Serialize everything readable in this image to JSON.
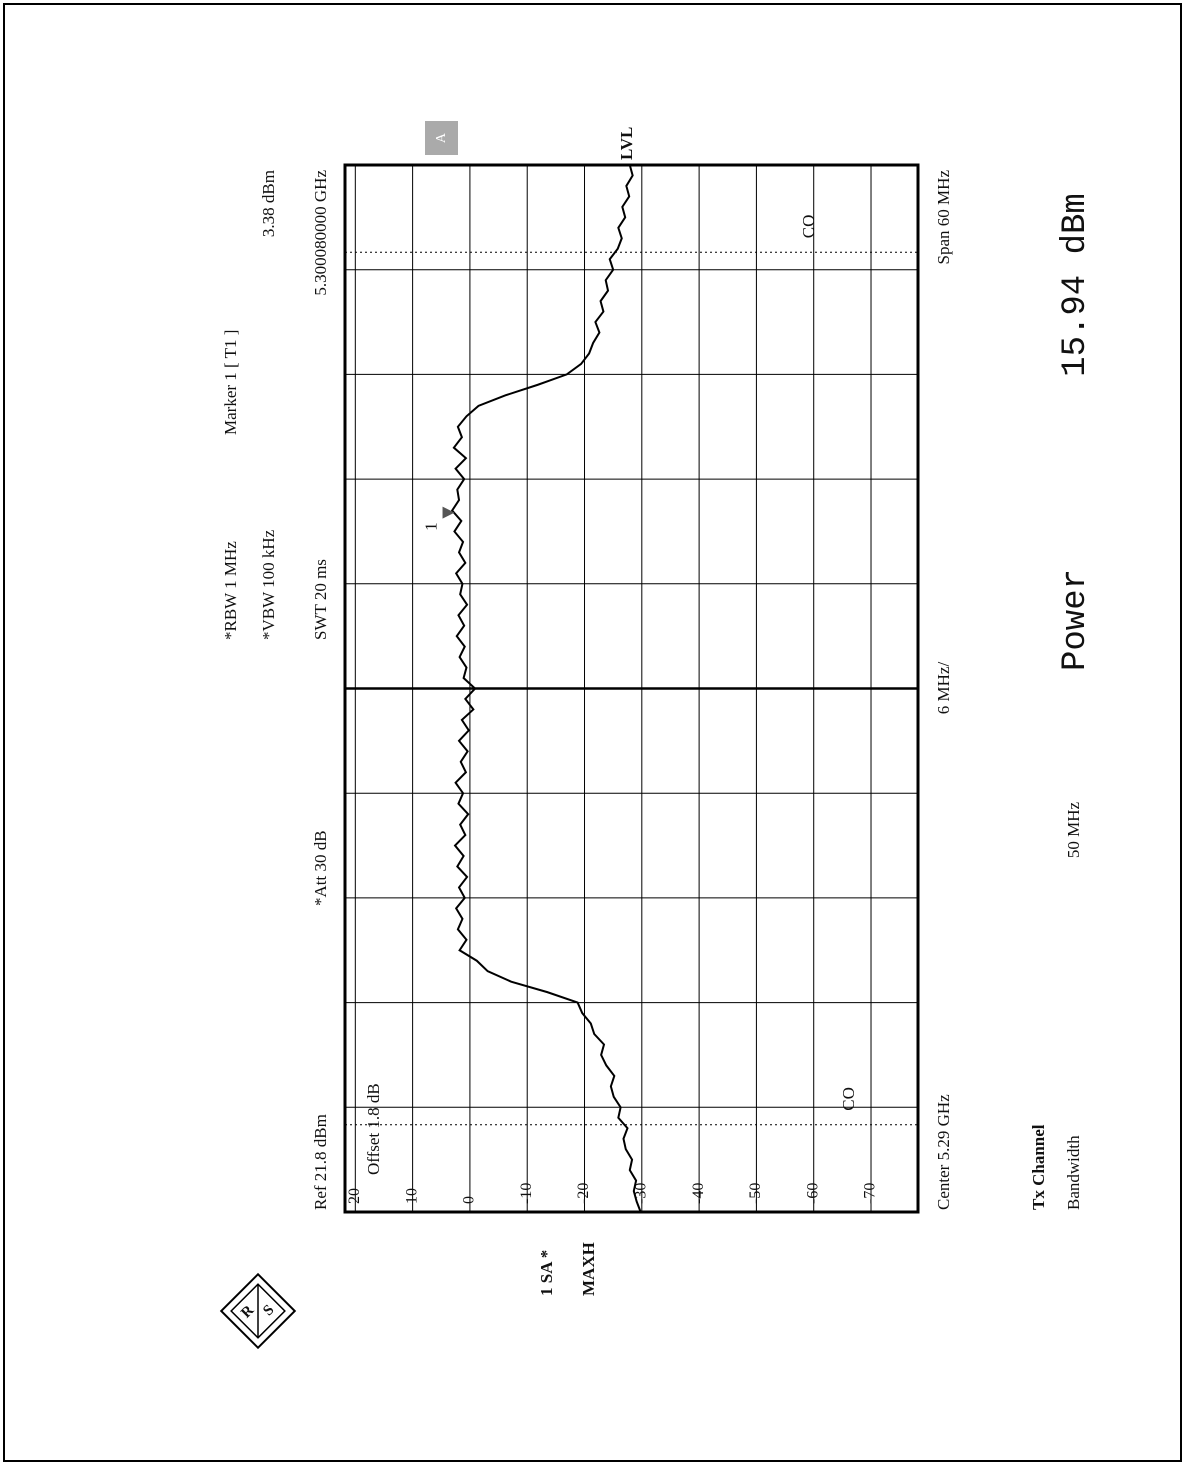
{
  "chart_data": {
    "type": "line",
    "ref_label": "Ref  21.8 dBm",
    "offset_label": "Offset  1.8 dB",
    "att_label": "*Att  30 dB",
    "rbw_label": "*RBW 1 MHz",
    "vbw_label": "*VBW 100 kHz",
    "swt_label": "SWT 20 ms",
    "marker": {
      "title": "Marker 1 [ T1 ]",
      "name": "1",
      "x": 5.30008,
      "value": 3.38,
      "value_label": "3.38 dBm",
      "x_label": "5.300080000 GHz"
    },
    "trace_label": "1 SA *",
    "detector_label": "MAXH",
    "lvl_label": "LVL",
    "status_box": "A",
    "logo": [
      "R",
      "S"
    ],
    "center_label": "Center 5.29 GHz",
    "div_label": "6 MHz/",
    "span_label": "Span 60 MHz",
    "channel_lines": [
      {
        "x": 5.265,
        "label": "CO"
      },
      {
        "x": 5.315,
        "label": "CO"
      }
    ],
    "results": {
      "title": "Tx Channel",
      "bandwidth_label": "Bandwidth",
      "bandwidth": "50 MHz",
      "power_label": "Power",
      "power": "15.94 dBm"
    },
    "xlim": [
      5.26,
      5.32
    ],
    "xticks": [
      5.26,
      5.266,
      5.272,
      5.278,
      5.284,
      5.29,
      5.296,
      5.302,
      5.308,
      5.314,
      5.32
    ],
    "ylim": [
      -78.2,
      21.8
    ],
    "yticks": [
      20,
      10,
      0,
      -10,
      -20,
      -30,
      -40,
      -50,
      -60,
      -70
    ],
    "grid": true,
    "x": [
      5.26,
      5.2606,
      5.2612,
      5.2618,
      5.2624,
      5.263,
      5.2636,
      5.2642,
      5.2648,
      5.2654,
      5.266,
      5.2666,
      5.2672,
      5.2678,
      5.2684,
      5.269,
      5.2696,
      5.2702,
      5.2708,
      5.2714,
      5.272,
      5.2726,
      5.2732,
      5.2738,
      5.2744,
      5.275,
      5.2756,
      5.2762,
      5.2768,
      5.2774,
      5.278,
      5.2786,
      5.2792,
      5.2798,
      5.2804,
      5.281,
      5.2816,
      5.2822,
      5.2828,
      5.2834,
      5.284,
      5.2846,
      5.2852,
      5.2858,
      5.2864,
      5.287,
      5.2876,
      5.2882,
      5.2888,
      5.2894,
      5.29,
      5.2906,
      5.2912,
      5.2918,
      5.2924,
      5.293,
      5.2936,
      5.2942,
      5.2948,
      5.2954,
      5.296,
      5.2966,
      5.2972,
      5.2978,
      5.2984,
      5.299,
      5.2996,
      5.3002,
      5.3008,
      5.3014,
      5.302,
      5.3026,
      5.3032,
      5.3038,
      5.3044,
      5.305,
      5.3056,
      5.3062,
      5.3068,
      5.3074,
      5.308,
      5.3086,
      5.3092,
      5.3098,
      5.3104,
      5.311,
      5.3116,
      5.3122,
      5.3128,
      5.3134,
      5.314,
      5.3146,
      5.3152,
      5.3158,
      5.3164,
      5.317,
      5.3176,
      5.3182,
      5.3188,
      5.3194,
      5.32
    ],
    "series": [
      {
        "color": "#000000",
        "values": [
          -29.8,
          -29.1,
          -28.6,
          -29.0,
          -27.9,
          -28.3,
          -27.2,
          -26.8,
          -27.5,
          -25.9,
          -26.3,
          -25.1,
          -24.6,
          -25.2,
          -23.8,
          -22.9,
          -23.4,
          -21.7,
          -21.1,
          -19.6,
          -18.8,
          -13.5,
          -7.2,
          -3.1,
          -1.2,
          1.8,
          0.6,
          2.1,
          1.3,
          2.4,
          0.9,
          1.9,
          0.5,
          2.2,
          1.1,
          2.6,
          0.8,
          1.7,
          0.3,
          2.0,
          1.2,
          2.5,
          0.7,
          1.6,
          0.4,
          1.9,
          0.2,
          1.4,
          -0.6,
          0.8,
          -0.9,
          1.1,
          0.6,
          1.8,
          0.9,
          2.3,
          1.0,
          2.0,
          0.5,
          1.7,
          1.3,
          2.4,
          0.8,
          1.9,
          1.2,
          2.7,
          1.5,
          3.1,
          1.9,
          2.2,
          1.0,
          2.5,
          0.7,
          2.8,
          1.4,
          2.1,
          0.6,
          -1.5,
          -6.2,
          -11.8,
          -16.9,
          -19.4,
          -20.8,
          -21.5,
          -22.6,
          -21.9,
          -23.3,
          -22.8,
          -24.1,
          -23.7,
          -25.0,
          -24.4,
          -25.8,
          -26.5,
          -25.9,
          -27.1,
          -26.6,
          -27.8,
          -27.3,
          -28.4,
          -27.9
        ]
      }
    ]
  }
}
